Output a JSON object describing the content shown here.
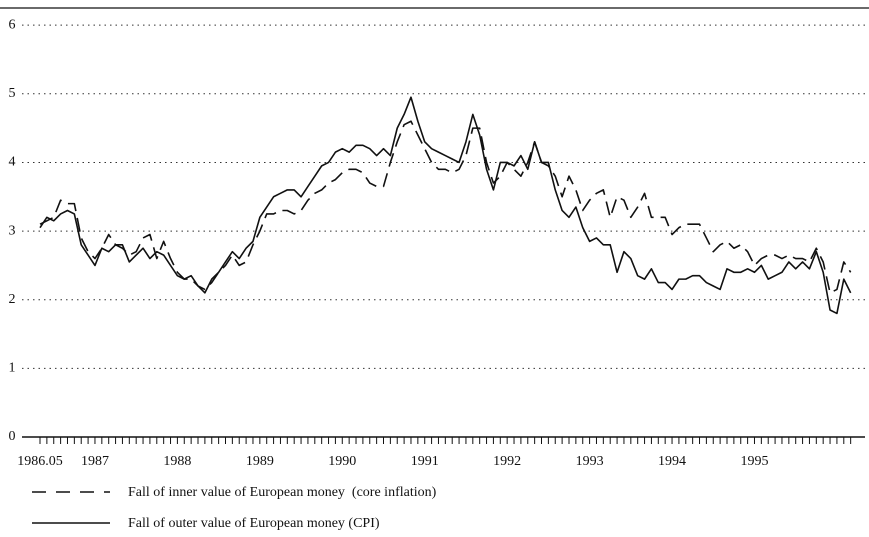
{
  "chart_data": {
    "type": "line",
    "categories": [
      "1986.05",
      null,
      null,
      null,
      null,
      null,
      null,
      null,
      "1987",
      null,
      null,
      null,
      null,
      null,
      null,
      null,
      null,
      null,
      null,
      null,
      "1988",
      null,
      null,
      null,
      null,
      null,
      null,
      null,
      null,
      null,
      null,
      null,
      "1989",
      null,
      null,
      null,
      null,
      null,
      null,
      null,
      null,
      null,
      null,
      null,
      "1990",
      null,
      null,
      null,
      null,
      null,
      null,
      null,
      null,
      null,
      null,
      null,
      "1991",
      null,
      null,
      null,
      null,
      null,
      null,
      null,
      null,
      null,
      null,
      null,
      "1992",
      null,
      null,
      null,
      null,
      null,
      null,
      null,
      null,
      null,
      null,
      null,
      "1993",
      null,
      null,
      null,
      null,
      null,
      null,
      null,
      null,
      null,
      null,
      null,
      "1994",
      null,
      null,
      null,
      null,
      null,
      null,
      null,
      null,
      null,
      null,
      null,
      "1995",
      null,
      null,
      null,
      null,
      null,
      null,
      null,
      null,
      null,
      null,
      null,
      null,
      null,
      null
    ],
    "series": [
      {
        "name": "Fall of inner value of European money  (core inflation)",
        "color": "#111111",
        "dashed": true,
        "values": [
          3.1,
          3.15,
          3.2,
          3.45,
          3.4,
          3.4,
          2.9,
          2.7,
          2.6,
          2.75,
          2.95,
          2.8,
          2.75,
          2.65,
          2.7,
          2.9,
          2.95,
          2.6,
          2.85,
          2.6,
          2.4,
          2.3,
          2.3,
          2.2,
          2.15,
          2.25,
          2.4,
          2.5,
          2.65,
          2.5,
          2.55,
          2.8,
          3.0,
          3.25,
          3.25,
          3.3,
          3.3,
          3.25,
          3.3,
          3.45,
          3.55,
          3.6,
          3.7,
          3.75,
          3.85,
          3.9,
          3.9,
          3.85,
          3.7,
          3.65,
          3.65,
          4.0,
          4.3,
          4.55,
          4.6,
          4.4,
          4.2,
          4.0,
          3.9,
          3.9,
          3.85,
          3.9,
          4.1,
          4.5,
          4.5,
          4.0,
          3.7,
          3.8,
          4.0,
          3.9,
          3.8,
          4.0,
          4.3,
          4.0,
          3.95,
          3.8,
          3.5,
          3.8,
          3.6,
          3.3,
          3.45,
          3.55,
          3.6,
          3.2,
          3.5,
          3.45,
          3.2,
          3.35,
          3.55,
          3.2,
          3.2,
          3.2,
          2.95,
          3.05,
          3.1,
          3.1,
          3.1,
          2.9,
          2.7,
          2.8,
          2.85,
          2.75,
          2.8,
          2.7,
          2.5,
          2.6,
          2.65,
          2.65,
          2.6,
          2.65,
          2.6,
          2.6,
          2.55,
          2.75,
          2.55,
          2.1,
          2.15,
          2.55,
          2.4
        ]
      },
      {
        "name": "Fall of outer value of European money (CPI)",
        "color": "#111111",
        "dashed": false,
        "values": [
          3.05,
          3.2,
          3.15,
          3.25,
          3.3,
          3.25,
          2.8,
          2.65,
          2.5,
          2.75,
          2.7,
          2.8,
          2.8,
          2.55,
          2.65,
          2.75,
          2.6,
          2.7,
          2.65,
          2.5,
          2.35,
          2.3,
          2.35,
          2.2,
          2.1,
          2.3,
          2.4,
          2.55,
          2.7,
          2.6,
          2.75,
          2.85,
          3.2,
          3.35,
          3.5,
          3.55,
          3.6,
          3.6,
          3.5,
          3.65,
          3.8,
          3.95,
          4.0,
          4.15,
          4.2,
          4.15,
          4.25,
          4.25,
          4.2,
          4.1,
          4.2,
          4.1,
          4.5,
          4.7,
          4.95,
          4.6,
          4.3,
          4.2,
          4.15,
          4.1,
          4.05,
          4.0,
          4.3,
          4.7,
          4.4,
          3.9,
          3.6,
          4.0,
          4.0,
          3.95,
          4.1,
          3.9,
          4.3,
          4.0,
          4.0,
          3.6,
          3.3,
          3.2,
          3.35,
          3.05,
          2.85,
          2.9,
          2.8,
          2.8,
          2.4,
          2.7,
          2.6,
          2.35,
          2.3,
          2.45,
          2.25,
          2.25,
          2.15,
          2.3,
          2.3,
          2.35,
          2.35,
          2.25,
          2.2,
          2.15,
          2.45,
          2.4,
          2.4,
          2.45,
          2.4,
          2.5,
          2.3,
          2.35,
          2.4,
          2.55,
          2.45,
          2.55,
          2.45,
          2.7,
          2.4,
          1.85,
          1.8,
          2.3,
          2.1
        ]
      }
    ],
    "ylim": [
      0,
      6.25
    ],
    "yticks": [
      0,
      1,
      2,
      3,
      4,
      5,
      6
    ],
    "grid": true
  }
}
